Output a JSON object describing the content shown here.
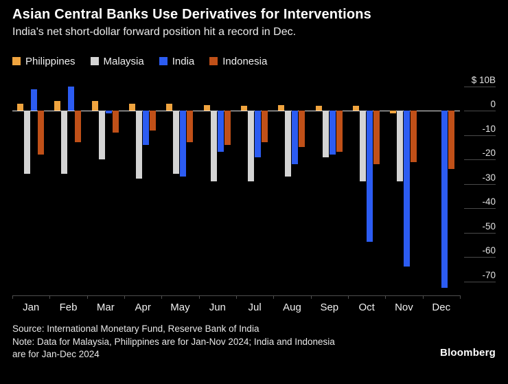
{
  "header": {
    "title": "Asian Central Banks Use Derivatives for Interventions",
    "subtitle": "India's net short-dollar forward position hit a record in Dec."
  },
  "chart_data": {
    "type": "bar",
    "title": "Asian Central Banks Use Derivatives for Interventions",
    "subtitle": "India's net short-dollar forward position hit a record in Dec.",
    "categories": [
      "Jan",
      "Feb",
      "Mar",
      "Apr",
      "May",
      "Jun",
      "Jul",
      "Aug",
      "Sep",
      "Oct",
      "Nov",
      "Dec"
    ],
    "series": [
      {
        "name": "Philippines",
        "color": "#f0a43f",
        "values": [
          3,
          4,
          4,
          3,
          3,
          2.5,
          2,
          2.5,
          2,
          2,
          -1,
          null
        ]
      },
      {
        "name": "Malaysia",
        "color": "#d4d4d4",
        "values": [
          -26,
          -26,
          -20,
          -28,
          -26,
          -29,
          -29,
          -27,
          -19,
          -29,
          -29,
          null
        ]
      },
      {
        "name": "India",
        "color": "#2c5cf2",
        "values": [
          9,
          10,
          -1,
          -14,
          -27,
          -17,
          -19,
          -22,
          -18,
          -54,
          -64,
          -73
        ]
      },
      {
        "name": "Indonesia",
        "color": "#c05018",
        "values": [
          -18,
          -13,
          -9,
          -8,
          -13,
          -14,
          -13,
          -15,
          -17,
          -22,
          -21,
          -24
        ]
      }
    ],
    "ylim": [
      -76,
      10
    ],
    "yticks": [
      10,
      0,
      -10,
      -20,
      -30,
      -40,
      -50,
      -60,
      -70
    ],
    "ytick_labels": [
      "$ 10B",
      "0",
      "-10",
      "-20",
      "-30",
      "-40",
      "-50",
      "-60",
      "-70"
    ],
    "ylabel": "",
    "xlabel": "",
    "grid": "zero line and short right-edge tick dashes only",
    "legend_position": "top-left",
    "axis_side": "right"
  },
  "footer": {
    "source": "Source: International Monetary Fund, Reserve Bank of India",
    "note": "Note: Data for Malaysia, Philippines are for Jan-Nov 2024; India and Indonesia are for Jan-Dec 2024",
    "brand": "Bloomberg"
  }
}
